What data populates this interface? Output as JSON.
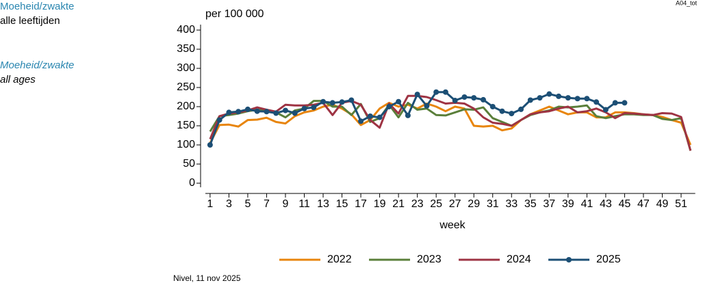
{
  "chart_data": {
    "type": "line",
    "title": "Moeheid/zwakte",
    "subtitle": "alle leeftijden",
    "title_en": "Moeheid/zwakte",
    "subtitle_en": "all ages",
    "code": "A04_tot",
    "ylabel": "per 100 000",
    "xlabel": "week",
    "source": "Nivel, 11 nov 2025",
    "x": [
      1,
      2,
      3,
      4,
      5,
      6,
      7,
      8,
      9,
      10,
      11,
      12,
      13,
      14,
      15,
      16,
      17,
      18,
      19,
      20,
      21,
      22,
      23,
      24,
      25,
      26,
      27,
      28,
      29,
      30,
      31,
      32,
      33,
      34,
      35,
      36,
      37,
      38,
      39,
      40,
      41,
      42,
      43,
      44,
      45,
      46,
      47,
      48,
      49,
      50,
      51,
      52
    ],
    "xlim": [
      0.5,
      52.5
    ],
    "xticks": [
      1,
      3,
      5,
      7,
      9,
      11,
      13,
      15,
      17,
      19,
      21,
      23,
      25,
      27,
      29,
      31,
      33,
      35,
      37,
      39,
      41,
      43,
      45,
      47,
      49,
      51
    ],
    "ylim": [
      0,
      400
    ],
    "yticks": [
      0,
      50,
      100,
      150,
      200,
      250,
      300,
      350,
      400
    ],
    "grid": false,
    "legend": "bottom",
    "series": [
      {
        "name": "2022",
        "color": "#e8850c",
        "markers": false,
        "values": [
          105,
          152,
          153,
          148,
          165,
          166,
          171,
          160,
          156,
          175,
          185,
          190,
          200,
          205,
          195,
          180,
          152,
          165,
          195,
          210,
          200,
          205,
          195,
          208,
          200,
          188,
          200,
          195,
          150,
          148,
          150,
          138,
          143,
          165,
          180,
          190,
          200,
          190,
          180,
          185,
          185,
          172,
          172,
          185,
          185,
          183,
          180,
          178,
          173,
          165,
          158,
          100
        ]
      },
      {
        "name": "2023",
        "color": "#5a7f3a",
        "markers": false,
        "values": [
          135,
          175,
          178,
          182,
          188,
          192,
          190,
          185,
          172,
          190,
          195,
          215,
          215,
          200,
          200,
          178,
          207,
          160,
          170,
          205,
          172,
          210,
          192,
          195,
          178,
          177,
          185,
          193,
          192,
          198,
          170,
          160,
          150,
          165,
          178,
          185,
          190,
          200,
          198,
          200,
          203,
          175,
          170,
          175,
          180,
          180,
          178,
          178,
          168,
          165,
          170,
          85
        ]
      },
      {
        "name": "2024",
        "color": "#9e3343",
        "markers": false,
        "values": [
          115,
          175,
          182,
          185,
          190,
          198,
          192,
          187,
          205,
          203,
          203,
          205,
          210,
          178,
          210,
          215,
          205,
          165,
          145,
          208,
          182,
          228,
          228,
          225,
          217,
          208,
          210,
          208,
          195,
          172,
          158,
          155,
          150,
          165,
          180,
          185,
          188,
          195,
          200,
          185,
          188,
          195,
          185,
          170,
          183,
          182,
          180,
          178,
          183,
          182,
          173,
          85
        ]
      },
      {
        "name": "2025",
        "color": "#1c4f75",
        "markers": true,
        "values": [
          100,
          165,
          185,
          187,
          193,
          188,
          187,
          183,
          190,
          183,
          195,
          198,
          213,
          210,
          212,
          217,
          162,
          175,
          172,
          200,
          213,
          177,
          232,
          202,
          238,
          238,
          216,
          225,
          223,
          218,
          200,
          188,
          182,
          193,
          217,
          223,
          233,
          227,
          223,
          221,
          221,
          212,
          192,
          210,
          210,
          null,
          null,
          null,
          null,
          null,
          null,
          null
        ]
      }
    ]
  }
}
